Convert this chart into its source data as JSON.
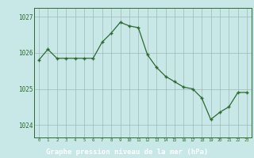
{
  "hours": [
    0,
    1,
    2,
    3,
    4,
    5,
    6,
    7,
    8,
    9,
    10,
    11,
    12,
    13,
    14,
    15,
    16,
    17,
    18,
    19,
    20,
    21,
    22,
    23
  ],
  "pressure": [
    1025.8,
    1026.1,
    1025.85,
    1025.85,
    1025.85,
    1025.85,
    1025.85,
    1026.3,
    1026.55,
    1026.85,
    1026.75,
    1026.7,
    1025.95,
    1025.6,
    1025.35,
    1025.2,
    1025.05,
    1025.0,
    1024.75,
    1024.15,
    1024.35,
    1024.5,
    1024.9,
    1024.9
  ],
  "bg_color": "#c8e8e8",
  "line_color": "#2d6a2d",
  "marker_color": "#2d6a2d",
  "grid_color": "#a0b8b8",
  "ylabel_ticks": [
    1024,
    1025,
    1026,
    1027
  ],
  "xlabel": "Graphe pression niveau de la mer (hPa)",
  "xlabel_color": "#ffffff",
  "xlabel_bg": "#2d6a2d",
  "tick_color": "#2d6a2d",
  "ylim": [
    1023.65,
    1027.25
  ],
  "xlim": [
    -0.5,
    23.5
  ]
}
